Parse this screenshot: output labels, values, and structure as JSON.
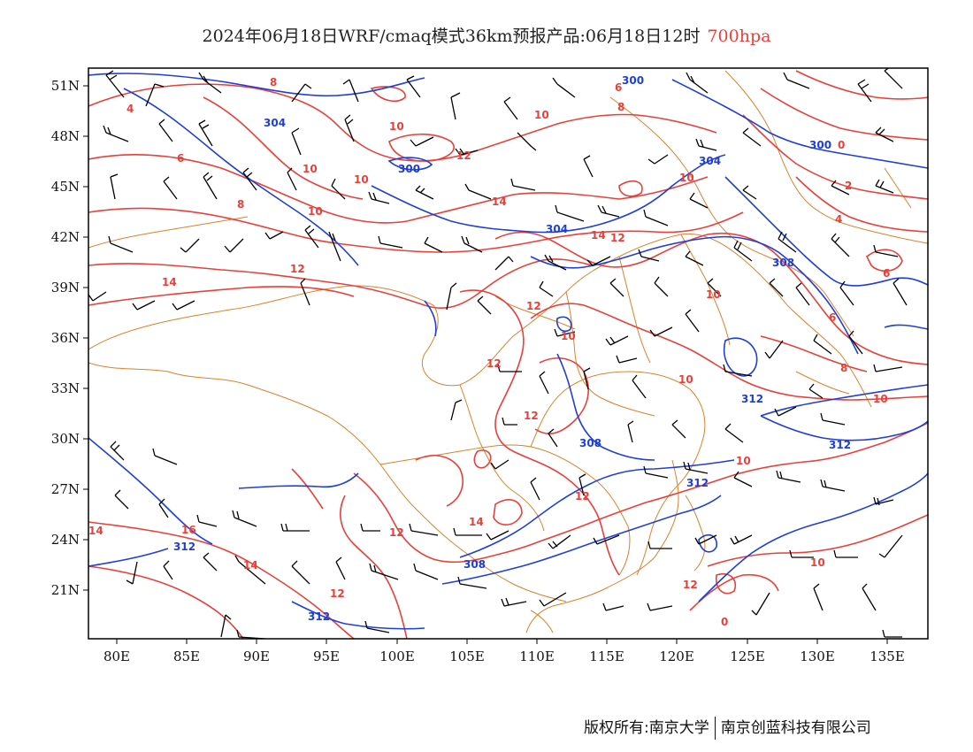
{
  "title": {
    "main": "2024年06月18日WRF/cmaq模式36km预报产品:06月18日12时",
    "level": "700hpa"
  },
  "colors": {
    "temperature": "#e8403a",
    "height": "#1f3fd6",
    "border": "#d9822b",
    "wind": "#000000",
    "frame": "#000000"
  },
  "axes": {
    "lon_labels": [
      "80E",
      "85E",
      "90E",
      "95E",
      "100E",
      "105E",
      "110E",
      "115E",
      "120E",
      "125E",
      "130E",
      "135E"
    ],
    "lat_labels": [
      "51N",
      "48N",
      "45N",
      "42N",
      "39N",
      "36N",
      "33N",
      "30N",
      "27N",
      "24N",
      "21N"
    ]
  },
  "contour_labels": {
    "temperature": [
      "4",
      "6",
      "8",
      "10",
      "12",
      "14",
      "16",
      "2",
      "0"
    ],
    "height": [
      "300",
      "304",
      "308",
      "312"
    ]
  },
  "footer": {
    "left": "版权所有:南京大学",
    "right": "南京创蓝科技有限公司"
  }
}
